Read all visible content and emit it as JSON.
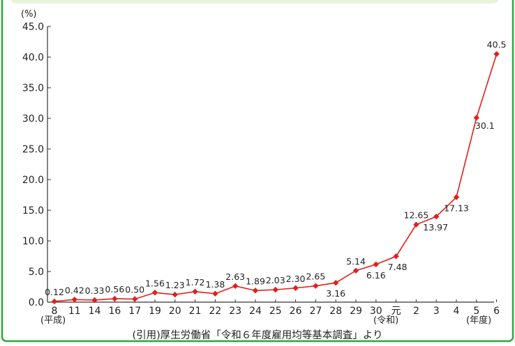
{
  "chart_data": {
    "type": "line",
    "unit_label": "(%)",
    "categories": [
      "8",
      "11",
      "14",
      "16",
      "17",
      "19",
      "20",
      "21",
      "22",
      "23",
      "24",
      "25",
      "26",
      "27",
      "28",
      "29",
      "30",
      "元",
      "2",
      "3",
      "4",
      "5",
      "6"
    ],
    "values": [
      0.12,
      0.42,
      0.33,
      0.56,
      0.5,
      1.56,
      1.23,
      1.72,
      1.38,
      2.63,
      1.89,
      2.03,
      2.3,
      2.65,
      3.16,
      5.14,
      6.16,
      7.48,
      12.65,
      13.97,
      17.13,
      30.1,
      40.5
    ],
    "value_labels": [
      "0.12",
      "0.42",
      "0.33",
      "0.56",
      "0.50",
      "1.56",
      "1.23",
      "1.72",
      "1.38",
      "2.63",
      "1.89",
      "2.03",
      "2.30",
      "2.65",
      "3.16",
      "5.14",
      "6.16",
      "7.48",
      "12.65",
      "13.97",
      "17.13",
      "30.1",
      "40.5"
    ],
    "y_ticks": [
      "0.0",
      "5.0",
      "10.0",
      "15.0",
      "20.0",
      "25.0",
      "30.0",
      "35.0",
      "40.0",
      "45.0"
    ],
    "ylim": [
      0,
      45
    ],
    "era_labels": {
      "heisei": "(平成)",
      "reiwa": "(令和)",
      "year_unit": "(年度)"
    },
    "source": "(引用)厚生労働省「令和６年度雇用均等基本調査」より",
    "colors": {
      "line": "#e0201c",
      "marker": "#e0201c",
      "frame_border": "#2aa83a",
      "top_banner": "#e8f3dc",
      "axis": "#333333",
      "text": "#222222"
    },
    "grid": false
  }
}
